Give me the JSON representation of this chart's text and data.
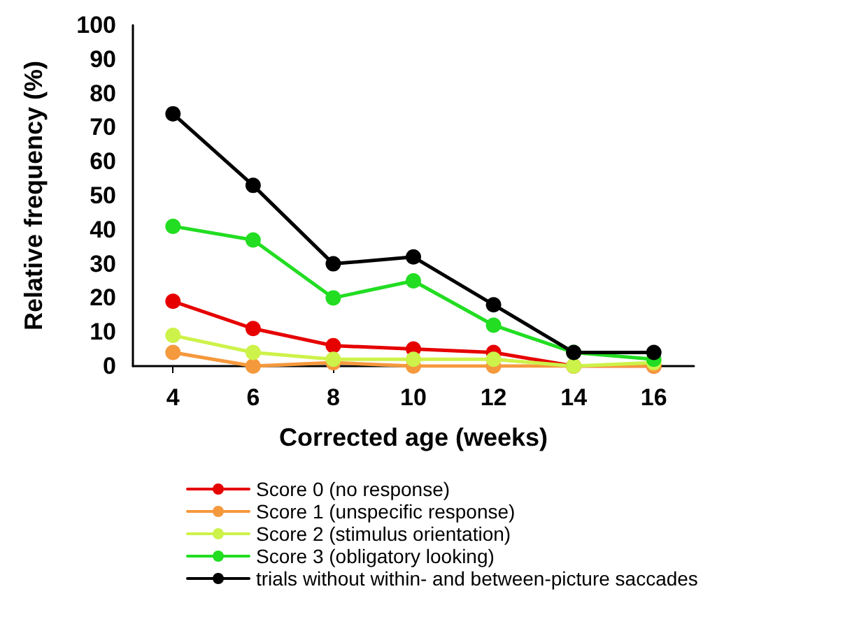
{
  "chart_data": {
    "type": "line",
    "xlabel": "Corrected age (weeks)",
    "ylabel": "Relative frequency (%)",
    "categories": [
      "4",
      "6",
      "8",
      "10",
      "12",
      "14",
      "16"
    ],
    "series": [
      {
        "name": "Score 0 (no response)",
        "color": "#e60000",
        "values": [
          19,
          11,
          6,
          5,
          4,
          0,
          0
        ]
      },
      {
        "name": "Score 1 (unspecific response)",
        "color": "#f5993d",
        "values": [
          4,
          0,
          1,
          0,
          0,
          0,
          0
        ]
      },
      {
        "name": "Score 2 (stimulus orientation)",
        "color": "#cdf24a",
        "values": [
          9,
          4,
          2,
          2,
          2,
          0,
          1
        ]
      },
      {
        "name": "Score 3 (obligatory looking)",
        "color": "#22dd22",
        "values": [
          41,
          37,
          20,
          25,
          12,
          4,
          2
        ]
      },
      {
        "name": "trials without within- and between-picture saccades",
        "color": "#000000",
        "values": [
          74,
          53,
          30,
          32,
          18,
          4,
          4
        ]
      }
    ],
    "ylim": [
      0,
      100
    ],
    "yticks": [
      0,
      10,
      20,
      30,
      40,
      50,
      60,
      70,
      80,
      90,
      100
    ],
    "grid": false,
    "legend": "bottom",
    "marker": "circle",
    "line_style": "solid"
  }
}
